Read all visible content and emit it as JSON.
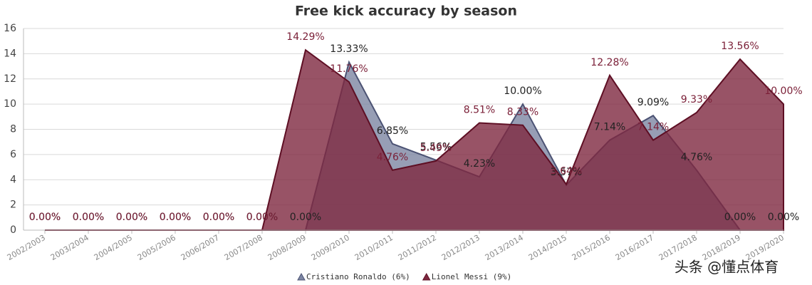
{
  "chart_data": {
    "type": "area",
    "title": "Free kick accuracy by season",
    "categories": [
      "2002/2003",
      "2003/2004",
      "2004/2005",
      "2005/2006",
      "2006/2007",
      "2007/2008",
      "2008/2009",
      "2009/2010",
      "2010/2011",
      "2011/2012",
      "2012/2013",
      "2013/2014",
      "2014/2015",
      "2015/2016",
      "2016/2017",
      "2017/2018",
      "2018/2019",
      "2019/2020"
    ],
    "series": [
      {
        "name": "Cristiano Ronaldo (6%)",
        "color": "#7d86a3",
        "line_color": "#4b5273",
        "label_color": "#222222",
        "values": [
          0,
          0,
          0,
          0,
          0,
          0,
          0,
          13.33,
          6.85,
          5.56,
          4.23,
          10.0,
          3.57,
          7.14,
          9.09,
          4.76,
          0,
          0
        ],
        "value_labels": [
          "0.00%",
          "0.00%",
          "0.00%",
          "0.00%",
          "0.00%",
          "0.00%",
          "0.00%",
          "13.33%",
          "6.85%",
          "5.56%",
          "4.23%",
          "10.00%",
          "3.57%",
          "7.14%",
          "9.09%",
          "4.76%",
          "0.00%",
          "0.00%"
        ]
      },
      {
        "name": "Lionel Messi (9%)",
        "color": "#7e2840",
        "line_color": "#5e0f24",
        "label_color": "#7b2038",
        "values": [
          0,
          0,
          0,
          0,
          0,
          0,
          14.29,
          11.76,
          4.76,
          5.49,
          8.51,
          8.33,
          3.64,
          12.28,
          7.14,
          9.33,
          13.56,
          10.0
        ],
        "value_labels": [
          "0.00%",
          "0.00%",
          "0.00%",
          "0.00%",
          "0.00%",
          "0.00%",
          "14.29%",
          "11.76%",
          "4.76%",
          "5.49%",
          "8.51%",
          "8.33%",
          "3.64%",
          "12.28%",
          "7.14%",
          "9.33%",
          "13.56%",
          "10.00%"
        ]
      }
    ],
    "ylim": [
      0,
      16
    ],
    "yticks": [
      0,
      2,
      4,
      6,
      8,
      10,
      12,
      14,
      16
    ],
    "grid": true,
    "legend": "bottom"
  },
  "watermark": "头条 @懂点体育"
}
